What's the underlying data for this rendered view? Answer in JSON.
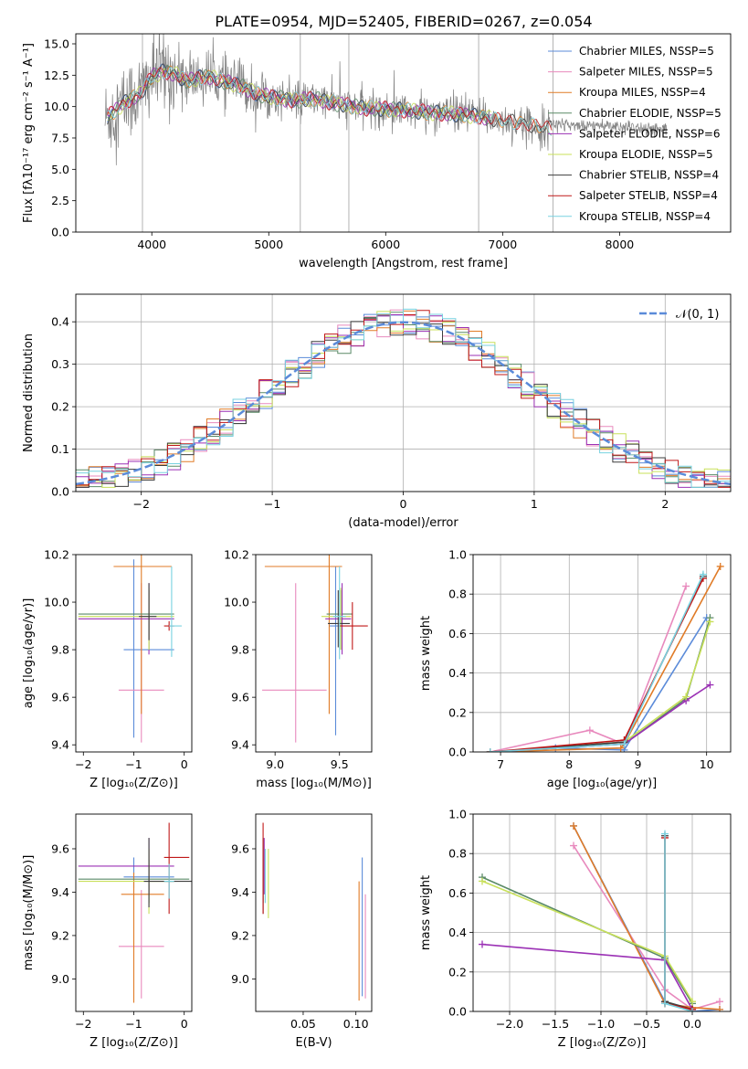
{
  "title": "PLATE=0954, MJD=52405, FIBERID=0267, z=0.054",
  "colors": {
    "chabrier_miles": "#5b8bd9",
    "salpeter_miles": "#e889bd",
    "kroupa_miles": "#e07b27",
    "chabrier_elodie": "#5a8a67",
    "salpeter_elodie": "#9b31b5",
    "kroupa_elodie": "#c8e05a",
    "chabrier_stelib": "#3d3d3d",
    "salpeter_stelib": "#c01818",
    "kroupa_stelib": "#78d2e0",
    "gaussian": "#5b8bd9"
  },
  "chart_data": [
    {
      "id": "spectrum",
      "type": "line",
      "xlabel": "wavelength [Angstrom, rest frame]",
      "ylabel": "Flux [fλ10⁻¹⁷ erg cm⁻² s⁻¹ A⁻¹]",
      "xlim": [
        3350,
        8950
      ],
      "ylim": [
        0,
        15.8
      ],
      "xticks": [
        "4000",
        "5000",
        "6000",
        "7000",
        "8000"
      ],
      "yticks": [
        "0.0",
        "2.5",
        "5.0",
        "7.5",
        "10.0",
        "12.5",
        "15.0"
      ],
      "grid": false,
      "legend": [
        "Chabrier MILES, NSSP=5",
        "Salpeter MILES, NSSP=5",
        "Kroupa MILES, NSSP=4",
        "Chabrier ELODIE, NSSP=5",
        "Salpeter ELODIE, NSSP=6",
        "Kroupa ELODIE, NSSP=5",
        "Chabrier STELIB, NSSP=4",
        "Salpeter STELIB, NSSP=4",
        "Kroupa STELIB, NSSP=4"
      ],
      "legend_position": "upper-right",
      "continuum": {
        "x": [
          3600,
          3700,
          3800,
          3900,
          4000,
          4100,
          4200,
          4300,
          4400,
          4500,
          4600,
          4700,
          4800,
          4900,
          5000,
          5200,
          5400,
          5600,
          5800,
          6000,
          6200,
          6400,
          6600,
          6800,
          7000,
          7200,
          7400
        ],
        "y": [
          9.0,
          9.8,
          10.5,
          11.0,
          12.4,
          12.8,
          12.6,
          12.0,
          12.3,
          12.4,
          12.0,
          11.8,
          11.5,
          11.0,
          10.8,
          10.5,
          10.6,
          10.2,
          9.9,
          9.8,
          9.7,
          9.5,
          9.4,
          9.2,
          8.9,
          8.6,
          8.3
        ]
      },
      "data_noise_amplitude": 1.4,
      "vertical_spikes": [
        3920,
        5270,
        5685,
        6795,
        7430
      ]
    },
    {
      "id": "residuals",
      "type": "histogram",
      "xlabel": "(data-model)/error",
      "ylabel": "Normed distribution",
      "xlim": [
        -2.5,
        2.5
      ],
      "ylim": [
        0,
        0.465
      ],
      "xticks": [
        "−2",
        "−1",
        "0",
        "1",
        "2"
      ],
      "yticks": [
        "0.0",
        "0.1",
        "0.2",
        "0.3",
        "0.4"
      ],
      "grid": true,
      "legend": [
        "𝒩(0, 1)"
      ],
      "legend_position": "upper-right",
      "bin_edges_start": -2.5,
      "bin_width": 0.1,
      "gaussian": {
        "mean": 0,
        "sigma": 1
      }
    },
    {
      "id": "age_vs_z",
      "type": "errorbar",
      "xlabel": "Z [log₁₀(Z/Z⊙)]",
      "ylabel": "age  [log₁₀(age/yr)]",
      "xlim": [
        -2.15,
        0.15
      ],
      "ylim": [
        9.37,
        10.2
      ],
      "xticks": [
        "−2",
        "−1",
        "0"
      ],
      "yticks": [
        "9.4",
        "9.6",
        "9.8",
        "10.0",
        "10.2"
      ],
      "points": [
        {
          "model": "chabrier_miles",
          "x": -1.0,
          "y": 9.8,
          "xerr": [
            0.2,
            0.8
          ],
          "yerr": [
            0.37,
            0.38
          ]
        },
        {
          "model": "salpeter_miles",
          "x": -0.85,
          "y": 9.63,
          "xerr": [
            0.45,
            0.45
          ],
          "yerr": [
            0.22,
            0.45
          ]
        },
        {
          "model": "kroupa_miles",
          "x": -0.85,
          "y": 10.15,
          "xerr": [
            0.55,
            0.6
          ],
          "yerr": [
            0.62,
            0.05
          ]
        },
        {
          "model": "chabrier_elodie",
          "x": -0.7,
          "y": 9.95,
          "xerr": [
            1.4,
            0.5
          ],
          "yerr": [
            0.15,
            0.1
          ]
        },
        {
          "model": "salpeter_elodie",
          "x": -0.7,
          "y": 9.93,
          "xerr": [
            1.4,
            0.5
          ],
          "yerr": [
            0.15,
            0.15
          ]
        },
        {
          "model": "kroupa_elodie",
          "x": -0.7,
          "y": 9.94,
          "xerr": [
            1.4,
            0.5
          ],
          "yerr": [
            0.14,
            0.12
          ]
        },
        {
          "model": "chabrier_stelib",
          "x": -0.7,
          "y": 9.94,
          "xerr": [
            0.2,
            0.15
          ],
          "yerr": [
            0.1,
            0.14
          ]
        },
        {
          "model": "salpeter_stelib",
          "x": -0.3,
          "y": 9.9,
          "xerr": [
            0.1,
            0.1
          ],
          "yerr": [
            0.02,
            0.02
          ]
        },
        {
          "model": "kroupa_stelib",
          "x": -0.25,
          "y": 9.9,
          "xerr": [
            0.05,
            0.2
          ],
          "yerr": [
            0.13,
            0.25
          ]
        }
      ]
    },
    {
      "id": "age_vs_mass",
      "type": "errorbar",
      "xlabel": "mass [log₁₀(M/M⊙)]",
      "ylabel": "",
      "xlim": [
        8.85,
        9.75
      ],
      "ylim": [
        9.37,
        10.2
      ],
      "xticks": [
        "9.0",
        "9.5"
      ],
      "yticks": [
        "9.4",
        "9.6",
        "9.8",
        "10.0",
        "10.2"
      ],
      "points": [
        {
          "model": "chabrier_miles",
          "x": 9.47,
          "y": 9.9,
          "xerr": [
            0.05,
            0.04
          ],
          "yerr": [
            0.46,
            0.25
          ]
        },
        {
          "model": "salpeter_miles",
          "x": 9.16,
          "y": 9.63,
          "xerr": [
            0.26,
            0.24
          ],
          "yerr": [
            0.22,
            0.45
          ]
        },
        {
          "model": "kroupa_miles",
          "x": 9.42,
          "y": 10.15,
          "xerr": [
            0.5,
            0.1
          ],
          "yerr": [
            0.62,
            0.05
          ]
        },
        {
          "model": "chabrier_elodie",
          "x": 9.51,
          "y": 9.95,
          "xerr": [
            0.11,
            0.09
          ],
          "yerr": [
            0.15,
            0.1
          ]
        },
        {
          "model": "salpeter_elodie",
          "x": 9.52,
          "y": 9.93,
          "xerr": [
            0.13,
            0.07
          ],
          "yerr": [
            0.15,
            0.15
          ]
        },
        {
          "model": "kroupa_elodie",
          "x": 9.51,
          "y": 9.94,
          "xerr": [
            0.15,
            0.08
          ],
          "yerr": [
            0.14,
            0.12
          ]
        },
        {
          "model": "chabrier_stelib",
          "x": 9.49,
          "y": 9.91,
          "xerr": [
            0.08,
            0.09
          ],
          "yerr": [
            0.1,
            0.14
          ]
        },
        {
          "model": "salpeter_stelib",
          "x": 9.6,
          "y": 9.9,
          "xerr": [
            0.1,
            0.12
          ],
          "yerr": [
            0.1,
            0.1
          ]
        },
        {
          "model": "kroupa_stelib",
          "x": 9.5,
          "y": 9.94,
          "xerr": [
            0.05,
            0.05
          ],
          "yerr": [
            0.18,
            0.21
          ]
        }
      ]
    },
    {
      "id": "weight_vs_age",
      "type": "line",
      "xlabel": "age  [log₁₀(age/yr)]",
      "ylabel": "mass weight",
      "xlim": [
        6.6,
        10.35
      ],
      "ylim": [
        0,
        1.0
      ],
      "xticks": [
        "7",
        "8",
        "9",
        "10"
      ],
      "yticks": [
        "0.0",
        "0.2",
        "0.4",
        "0.6",
        "0.8",
        "1.0"
      ],
      "grid": true,
      "series": [
        {
          "model": "chabrier_miles",
          "x": [
            6.85,
            7.8,
            8.8,
            10.0
          ],
          "y": [
            0.0,
            0.02,
            0.01,
            0.68
          ]
        },
        {
          "model": "salpeter_miles",
          "x": [
            6.85,
            8.3,
            8.8,
            9.7
          ],
          "y": [
            0.0,
            0.11,
            0.04,
            0.84
          ]
        },
        {
          "model": "kroupa_miles",
          "x": [
            6.85,
            8.75,
            8.8,
            10.2
          ],
          "y": [
            0.0,
            0.02,
            0.04,
            0.94
          ]
        },
        {
          "model": "chabrier_elodie",
          "x": [
            6.85,
            8.8,
            9.7,
            10.05
          ],
          "y": [
            0.0,
            0.04,
            0.27,
            0.68
          ]
        },
        {
          "model": "salpeter_elodie",
          "x": [
            6.85,
            8.8,
            9.7,
            10.05
          ],
          "y": [
            0.0,
            0.04,
            0.26,
            0.34
          ]
        },
        {
          "model": "kroupa_elodie",
          "x": [
            6.85,
            8.8,
            9.7,
            10.05
          ],
          "y": [
            0.0,
            0.05,
            0.28,
            0.66
          ]
        },
        {
          "model": "chabrier_stelib",
          "x": [
            6.85,
            8.8,
            9.95
          ],
          "y": [
            0.0,
            0.05,
            0.89
          ]
        },
        {
          "model": "salpeter_stelib",
          "x": [
            6.85,
            8.8,
            9.95
          ],
          "y": [
            0.0,
            0.06,
            0.88
          ]
        },
        {
          "model": "kroupa_stelib",
          "x": [
            6.85,
            8.8,
            9.95
          ],
          "y": [
            0.0,
            0.04,
            0.9
          ]
        }
      ]
    },
    {
      "id": "mass_vs_z",
      "type": "errorbar",
      "xlabel": "Z [log₁₀(Z/Z⊙)]",
      "ylabel": "mass [log₁₀(M/M⊙)]",
      "xlim": [
        -2.15,
        0.15
      ],
      "ylim": [
        8.85,
        9.76
      ],
      "xticks": [
        "−2",
        "−1",
        "0"
      ],
      "yticks": [
        "9.0",
        "9.2",
        "9.4",
        "9.6"
      ],
      "points": [
        {
          "model": "chabrier_miles",
          "x": -1.0,
          "y": 9.47,
          "xerr": [
            0.2,
            0.8
          ],
          "yerr": [
            0.05,
            0.09
          ]
        },
        {
          "model": "salpeter_miles",
          "x": -0.85,
          "y": 9.15,
          "xerr": [
            0.45,
            0.45
          ],
          "yerr": [
            0.24,
            0.26
          ]
        },
        {
          "model": "kroupa_miles",
          "x": -1.0,
          "y": 9.39,
          "xerr": [
            0.25,
            0.6
          ],
          "yerr": [
            0.5,
            0.1
          ]
        },
        {
          "model": "chabrier_elodie",
          "x": -0.7,
          "y": 9.46,
          "xerr": [
            1.4,
            0.8
          ],
          "yerr": [
            0.11,
            0.09
          ]
        },
        {
          "model": "salpeter_elodie",
          "x": -0.7,
          "y": 9.52,
          "xerr": [
            1.4,
            0.5
          ],
          "yerr": [
            0.13,
            0.13
          ]
        },
        {
          "model": "kroupa_elodie",
          "x": -0.7,
          "y": 9.45,
          "xerr": [
            1.4,
            0.5
          ],
          "yerr": [
            0.15,
            0.15
          ]
        },
        {
          "model": "chabrier_stelib",
          "x": -0.7,
          "y": 9.45,
          "xerr": [
            0.1,
            0.9
          ],
          "yerr": [
            0.12,
            0.2
          ]
        },
        {
          "model": "salpeter_stelib",
          "x": -0.3,
          "y": 9.56,
          "xerr": [
            0.1,
            0.4
          ],
          "yerr": [
            0.26,
            0.16
          ]
        },
        {
          "model": "kroupa_stelib",
          "x": -0.3,
          "y": 9.45,
          "xerr": [
            0.1,
            0.1
          ],
          "yerr": [
            0.08,
            0.08
          ]
        }
      ]
    },
    {
      "id": "mass_vs_ebv",
      "type": "errorbar",
      "xlabel": "E(B-V)",
      "ylabel": "",
      "xlim": [
        0.005,
        0.115
      ],
      "ylim": [
        8.85,
        9.76
      ],
      "xticks": [
        "0.05",
        "0.10"
      ],
      "yticks": [
        "9.0",
        "9.2",
        "9.4",
        "9.6"
      ],
      "points": [
        {
          "model": "chabrier_miles",
          "x": 0.106,
          "y": 9.22,
          "xerr": [
            0,
            0
          ],
          "yerr": [
            0.3,
            0.34
          ]
        },
        {
          "model": "salpeter_miles",
          "x": 0.109,
          "y": 9.15,
          "xerr": [
            0,
            0
          ],
          "yerr": [
            0.24,
            0.24
          ]
        },
        {
          "model": "kroupa_miles",
          "x": 0.103,
          "y": 9.18,
          "xerr": [
            0,
            0
          ],
          "yerr": [
            0.28,
            0.27
          ]
        },
        {
          "model": "chabrier_elodie",
          "x": 0.012,
          "y": 9.46,
          "xerr": [
            0,
            0
          ],
          "yerr": [
            0.11,
            0.09
          ]
        },
        {
          "model": "salpeter_elodie",
          "x": 0.013,
          "y": 9.52,
          "xerr": [
            0,
            0
          ],
          "yerr": [
            0.13,
            0.13
          ]
        },
        {
          "model": "kroupa_elodie",
          "x": 0.017,
          "y": 9.44,
          "xerr": [
            0,
            0
          ],
          "yerr": [
            0.16,
            0.16
          ]
        },
        {
          "model": "chabrier_stelib",
          "x": 0.012,
          "y": 9.45,
          "xerr": [
            0,
            0
          ],
          "yerr": [
            0.15,
            0.2
          ]
        },
        {
          "model": "salpeter_stelib",
          "x": 0.012,
          "y": 9.56,
          "xerr": [
            0,
            0
          ],
          "yerr": [
            0.26,
            0.16
          ]
        },
        {
          "model": "kroupa_stelib",
          "x": 0.014,
          "y": 9.45,
          "xerr": [
            0,
            0
          ],
          "yerr": [
            0.1,
            0.15
          ]
        }
      ]
    },
    {
      "id": "weight_vs_z",
      "type": "line",
      "xlabel": "Z [log₁₀(Z/Z⊙)]",
      "ylabel": "mass weight",
      "xlim": [
        -2.4,
        0.42
      ],
      "ylim": [
        0,
        1.0
      ],
      "xticks": [
        "−2.0",
        "−1.5",
        "−1.0",
        "−0.5",
        "0.0"
      ],
      "yticks": [
        "0.0",
        "0.2",
        "0.4",
        "0.6",
        "0.8",
        "1.0"
      ],
      "grid": true,
      "series": [
        {
          "model": "chabrier_miles",
          "x": [
            -1.3,
            -0.3,
            0.0,
            0.3
          ],
          "y": [
            0.94,
            0.05,
            0.0,
            0.01
          ]
        },
        {
          "model": "salpeter_miles",
          "x": [
            -1.3,
            -0.3,
            0.0,
            0.3
          ],
          "y": [
            0.84,
            0.11,
            0.01,
            0.05
          ]
        },
        {
          "model": "kroupa_miles",
          "x": [
            -1.3,
            -0.3,
            0.0,
            0.3
          ],
          "y": [
            0.94,
            0.04,
            0.02,
            0.01
          ]
        },
        {
          "model": "chabrier_elodie",
          "x": [
            -2.3,
            -0.3,
            0.0
          ],
          "y": [
            0.68,
            0.27,
            0.04
          ]
        },
        {
          "model": "salpeter_elodie",
          "x": [
            -2.3,
            -0.3,
            0.0
          ],
          "y": [
            0.34,
            0.26,
            0.01
          ]
        },
        {
          "model": "kroupa_elodie",
          "x": [
            -2.3,
            -0.3,
            0.0
          ],
          "y": [
            0.66,
            0.28,
            0.05
          ]
        },
        {
          "model": "chabrier_stelib",
          "x": [
            -0.3,
            -0.3,
            0.0
          ],
          "y": [
            0.89,
            0.05,
            0.01
          ]
        },
        {
          "model": "salpeter_stelib",
          "x": [
            -0.3,
            -0.3,
            0.0
          ],
          "y": [
            0.88,
            0.04,
            0.01
          ]
        },
        {
          "model": "kroupa_stelib",
          "x": [
            -0.3,
            -0.3,
            0.0
          ],
          "y": [
            0.9,
            0.04,
            0.0
          ]
        }
      ]
    }
  ]
}
